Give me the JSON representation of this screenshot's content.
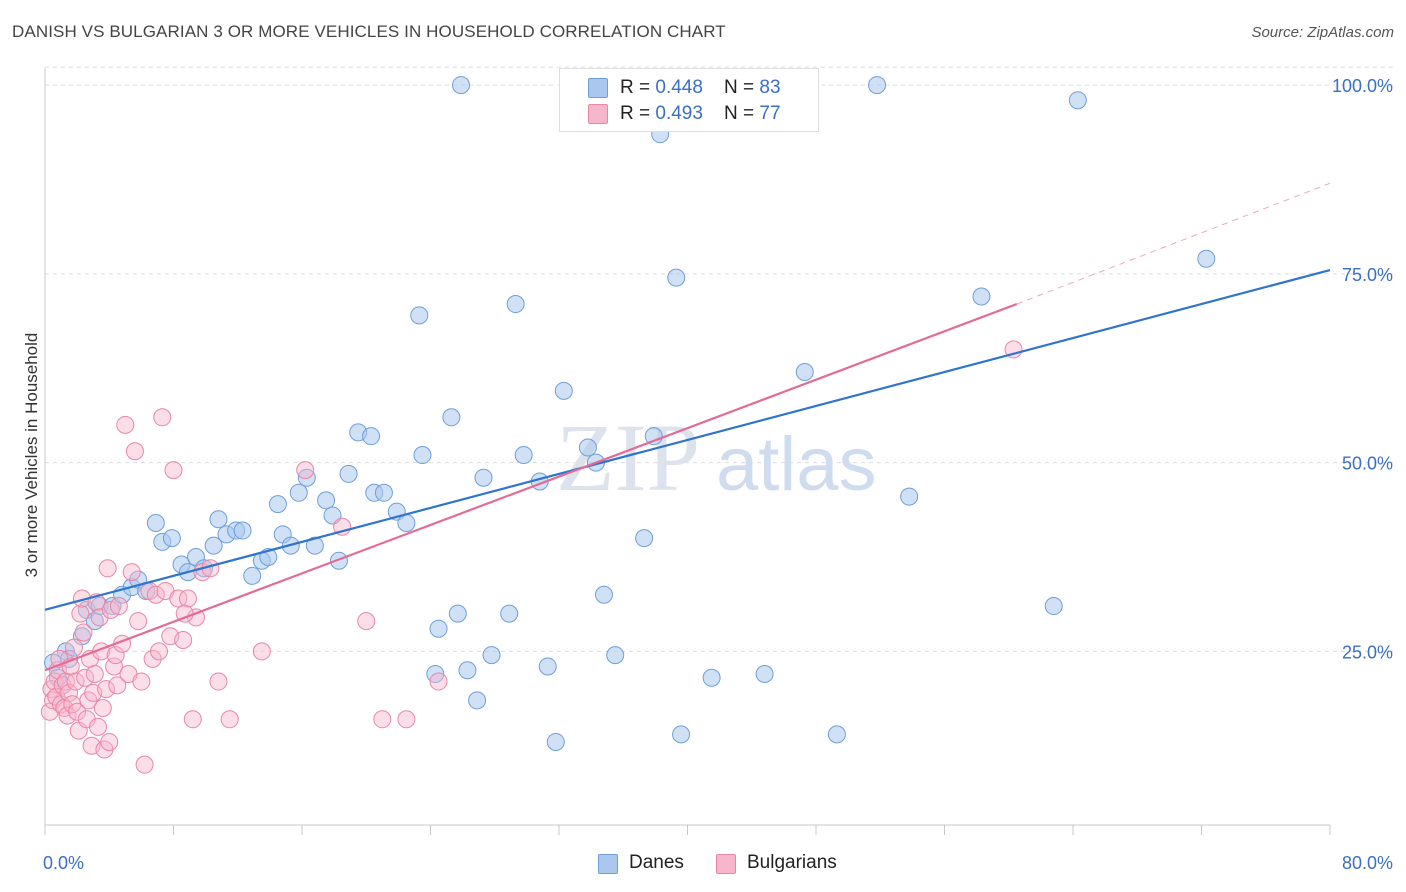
{
  "header": {
    "title": "DANISH VS BULGARIAN 3 OR MORE VEHICLES IN HOUSEHOLD CORRELATION CHART",
    "source": "Source: ZipAtlas.com"
  },
  "legend_box": {
    "rows": [
      {
        "r_label": "R = ",
        "r_value": "0.448",
        "n_label": "N = ",
        "n_value": "83"
      },
      {
        "r_label": "R = ",
        "r_value": "0.493",
        "n_label": "N = ",
        "n_value": "77"
      }
    ]
  },
  "bottom_legend": [
    "Danes",
    "Bulgarians"
  ],
  "colors": {
    "danes_fill": "#aac8ef",
    "danes_stroke": "#6f9fd8",
    "danes_line": "#2f74d0",
    "bulgarians_fill": "#f7b6cb",
    "bulgarians_stroke": "#ea86a6",
    "bulgarians_line": "#e26c96",
    "tick_label": "#3a6fc4",
    "grid": "#dcdcdc"
  },
  "watermark": {
    "zip": "ZIP",
    "atlas": "atlas"
  },
  "chart_data": {
    "type": "scatter",
    "title": "DANISH VS BULGARIAN 3 OR MORE VEHICLES IN HOUSEHOLD CORRELATION CHART",
    "xlabel": "",
    "ylabel": "3 or more Vehicles in Household",
    "xlim": [
      0,
      80
    ],
    "ylim": [
      2,
      102
    ],
    "x_tick_labels": [
      "0.0%",
      "80.0%"
    ],
    "y_ticks": [
      25,
      50,
      75,
      100
    ],
    "y_tick_labels": [
      "25.0%",
      "50.0%",
      "75.0%",
      "100.0%"
    ],
    "grid": "horizontal dashed",
    "legend": "top-center",
    "series": [
      {
        "name": "Danes",
        "r": 0.448,
        "n": 83,
        "trend": {
          "x": [
            0,
            80
          ],
          "y": [
            30.5,
            75.5
          ]
        },
        "points": [
          [
            0.5,
            23.5
          ],
          [
            0.8,
            21.5
          ],
          [
            1.3,
            25
          ],
          [
            1.5,
            24
          ],
          [
            2.3,
            27
          ],
          [
            2.6,
            30.5
          ],
          [
            3.1,
            29
          ],
          [
            3.4,
            31
          ],
          [
            4.2,
            31
          ],
          [
            4.8,
            32.5
          ],
          [
            5.4,
            33.5
          ],
          [
            5.8,
            34.5
          ],
          [
            6.3,
            33
          ],
          [
            6.9,
            42
          ],
          [
            7.3,
            39.5
          ],
          [
            7.9,
            40
          ],
          [
            8.5,
            36.5
          ],
          [
            8.9,
            35.5
          ],
          [
            9.4,
            37.5
          ],
          [
            9.9,
            36
          ],
          [
            10.5,
            39
          ],
          [
            10.8,
            42.5
          ],
          [
            11.3,
            40.5
          ],
          [
            11.9,
            41
          ],
          [
            12.3,
            41
          ],
          [
            12.9,
            35
          ],
          [
            13.5,
            37
          ],
          [
            13.9,
            37.5
          ],
          [
            14.5,
            44.5
          ],
          [
            14.8,
            40.5
          ],
          [
            15.3,
            39
          ],
          [
            15.8,
            46
          ],
          [
            16.3,
            48
          ],
          [
            16.8,
            39
          ],
          [
            17.5,
            45
          ],
          [
            17.9,
            43
          ],
          [
            18.3,
            37
          ],
          [
            18.9,
            48.5
          ],
          [
            19.5,
            54
          ],
          [
            20.3,
            53.5
          ],
          [
            20.5,
            46
          ],
          [
            21.1,
            46
          ],
          [
            21.9,
            43.5
          ],
          [
            22.5,
            42
          ],
          [
            23.3,
            69.5
          ],
          [
            23.5,
            51
          ],
          [
            24.3,
            22
          ],
          [
            24.5,
            28
          ],
          [
            25.3,
            56
          ],
          [
            25.7,
            30
          ],
          [
            25.9,
            100
          ],
          [
            26.3,
            22.5
          ],
          [
            26.9,
            18.5
          ],
          [
            27.3,
            48
          ],
          [
            27.8,
            24.5
          ],
          [
            28.9,
            30
          ],
          [
            29.3,
            71
          ],
          [
            29.8,
            51
          ],
          [
            30.8,
            47.5
          ],
          [
            31.3,
            23
          ],
          [
            31.8,
            13
          ],
          [
            32.3,
            59.5
          ],
          [
            33.8,
            52
          ],
          [
            34.3,
            50
          ],
          [
            34.8,
            32.5
          ],
          [
            35.5,
            24.5
          ],
          [
            37.3,
            40
          ],
          [
            37.9,
            53.5
          ],
          [
            38.3,
            93.5
          ],
          [
            39.3,
            74.5
          ],
          [
            39.6,
            14
          ],
          [
            41.5,
            21.5
          ],
          [
            43.3,
            100
          ],
          [
            44.8,
            22
          ],
          [
            45.3,
            100
          ],
          [
            47.3,
            62
          ],
          [
            49.3,
            14
          ],
          [
            51.8,
            100
          ],
          [
            53.8,
            45.5
          ],
          [
            58.3,
            72
          ],
          [
            62.8,
            31
          ],
          [
            64.3,
            98
          ],
          [
            72.3,
            77
          ]
        ]
      },
      {
        "name": "Bulgarians",
        "r": 0.493,
        "n": 77,
        "trend": {
          "x": [
            0,
            60.5
          ],
          "y": [
            22.5,
            71
          ]
        },
        "trend_dashed": {
          "x": [
            60.5,
            80
          ],
          "y": [
            71,
            87
          ]
        },
        "points": [
          [
            0.3,
            17
          ],
          [
            0.4,
            20
          ],
          [
            0.5,
            18.5
          ],
          [
            0.6,
            21
          ],
          [
            0.7,
            19
          ],
          [
            0.8,
            22.5
          ],
          [
            0.9,
            24
          ],
          [
            1.0,
            18
          ],
          [
            1.1,
            20.5
          ],
          [
            1.2,
            17.5
          ],
          [
            1.3,
            21
          ],
          [
            1.4,
            16.5
          ],
          [
            1.5,
            19.5
          ],
          [
            1.6,
            23
          ],
          [
            1.7,
            18
          ],
          [
            1.8,
            25.5
          ],
          [
            1.9,
            21
          ],
          [
            2.0,
            17
          ],
          [
            2.1,
            14.5
          ],
          [
            2.2,
            30
          ],
          [
            2.3,
            32
          ],
          [
            2.4,
            27.5
          ],
          [
            2.5,
            21.5
          ],
          [
            2.6,
            16
          ],
          [
            2.7,
            18.5
          ],
          [
            2.8,
            24
          ],
          [
            2.9,
            12.5
          ],
          [
            3.0,
            19.5
          ],
          [
            3.1,
            22
          ],
          [
            3.2,
            31.5
          ],
          [
            3.3,
            15
          ],
          [
            3.4,
            29.5
          ],
          [
            3.5,
            25
          ],
          [
            3.6,
            17.5
          ],
          [
            3.7,
            12
          ],
          [
            3.8,
            20
          ],
          [
            3.9,
            36
          ],
          [
            4.0,
            13
          ],
          [
            4.1,
            30.5
          ],
          [
            4.3,
            23
          ],
          [
            4.4,
            24.5
          ],
          [
            4.5,
            20.5
          ],
          [
            4.6,
            31
          ],
          [
            4.8,
            26
          ],
          [
            5.0,
            55
          ],
          [
            5.2,
            22
          ],
          [
            5.4,
            35.5
          ],
          [
            5.6,
            51.5
          ],
          [
            5.8,
            29
          ],
          [
            6.0,
            21
          ],
          [
            6.2,
            10
          ],
          [
            6.5,
            33
          ],
          [
            6.7,
            24
          ],
          [
            6.9,
            32.5
          ],
          [
            7.1,
            25
          ],
          [
            7.3,
            56
          ],
          [
            7.5,
            33
          ],
          [
            7.8,
            27
          ],
          [
            8.0,
            49
          ],
          [
            8.3,
            32
          ],
          [
            8.6,
            26.5
          ],
          [
            8.9,
            32
          ],
          [
            9.2,
            16
          ],
          [
            9.4,
            29.5
          ],
          [
            9.8,
            35.5
          ],
          [
            10.3,
            36
          ],
          [
            10.8,
            21
          ],
          [
            11.5,
            16
          ],
          [
            13.5,
            25
          ],
          [
            16.2,
            49
          ],
          [
            18.5,
            41.5
          ],
          [
            20.0,
            29
          ],
          [
            21.0,
            16
          ],
          [
            22.5,
            16
          ],
          [
            24.5,
            21
          ],
          [
            60.3,
            65
          ],
          [
            8.7,
            30
          ]
        ]
      }
    ]
  }
}
